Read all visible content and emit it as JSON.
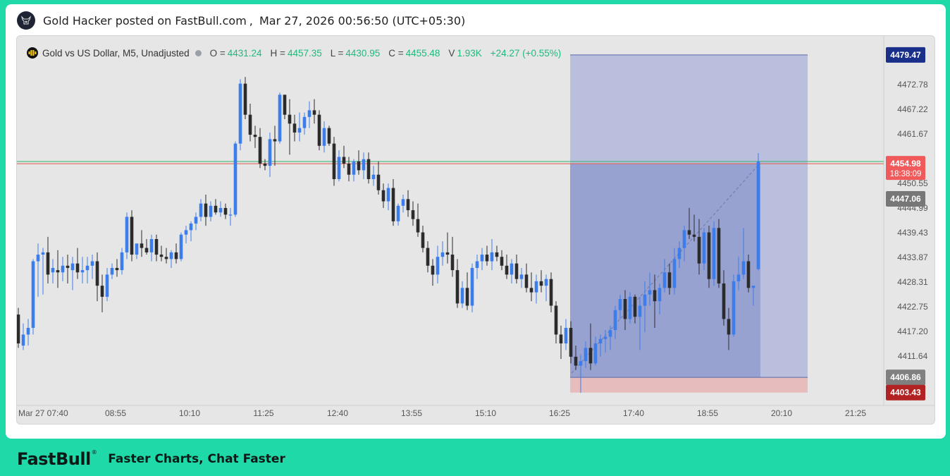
{
  "header": {
    "author": "Gold Hacker posted on FastBull.com",
    "separator": ",",
    "timestamp": "Mar 27, 2026 00:56:50 (UTC+05:30)",
    "avatar_icon": "bull-avatar-icon"
  },
  "legend": {
    "symbol": "Gold vs US Dollar, M5, Unadjusted",
    "symbol_icon": "gold-coin-icon",
    "o_label": "O =",
    "o_value": "4431.24",
    "h_label": "H =",
    "h_value": "4457.35",
    "l_label": "L =",
    "l_value": "4430.95",
    "c_label": "C =",
    "c_value": "4455.48",
    "v_label": "V",
    "v_value": "1.93K",
    "change": "+24.27 (+0.55%)"
  },
  "chart_data": {
    "type": "candlestick",
    "timeframe": "M5",
    "y_axis_ticks": [
      "4472.78",
      "4467.22",
      "4461.67",
      "4450.55",
      "4444.99",
      "4439.43",
      "4433.87",
      "4428.31",
      "4422.75",
      "4417.20",
      "4411.64"
    ],
    "y_tick_values": [
      4472.78,
      4467.22,
      4461.67,
      4450.55,
      4444.99,
      4439.43,
      4433.87,
      4428.31,
      4422.75,
      4417.2,
      4411.64
    ],
    "x_axis_ticks": [
      "Mar 27 07:40",
      "08:55",
      "10:10",
      "11:25",
      "12:40",
      "13:55",
      "15:10",
      "16:25",
      "17:40",
      "18:55",
      "20:10",
      "21:25"
    ],
    "price_labels": [
      {
        "value": "4479.47",
        "color": "#1a2f8a",
        "role": "target-price"
      },
      {
        "value": "4454.98",
        "color": "#f05a5a",
        "role": "last-price",
        "countdown": "18:38:09"
      },
      {
        "value": "4447.06",
        "color": "#777777",
        "role": "crosshair-price"
      },
      {
        "value": "4406.86",
        "color": "#808080",
        "role": "entry-price"
      },
      {
        "value": "4403.43",
        "color": "#b22222",
        "role": "stop-price"
      }
    ],
    "horizontal_lines": [
      {
        "value": 4455.48,
        "color": "#2ab36e"
      },
      {
        "value": 4454.98,
        "color": "#e05a4a"
      }
    ],
    "long_position": {
      "entry": 4406.86,
      "target": 4479.47,
      "stop": 4403.43
    },
    "bull_color": "#3b7dea",
    "bear_color": "#2b2b2b",
    "candles": [
      [
        4421.0,
        4422.5,
        4413.5,
        4414.5
      ],
      [
        4414.0,
        4419.0,
        4413.0,
        4416.5
      ],
      [
        4416.5,
        4420.0,
        4414.0,
        4418.0
      ],
      [
        4418.0,
        4433.5,
        4416.5,
        4433.0
      ],
      [
        4433.0,
        4437.0,
        4425.0,
        4434.5
      ],
      [
        4434.5,
        4436.0,
        4425.5,
        4435.0
      ],
      [
        4435.0,
        4438.5,
        4428.0,
        4430.0
      ],
      [
        4430.5,
        4433.5,
        4428.0,
        4431.5
      ],
      [
        4431.0,
        4435.5,
        4427.0,
        4430.5
      ],
      [
        4430.5,
        4434.0,
        4428.5,
        4432.0
      ],
      [
        4432.0,
        4434.5,
        4428.0,
        4431.5
      ],
      [
        4431.0,
        4434.0,
        4426.5,
        4432.5
      ],
      [
        4432.5,
        4436.0,
        4429.0,
        4430.5
      ],
      [
        4430.5,
        4434.0,
        4428.0,
        4431.0
      ],
      [
        4431.0,
        4434.0,
        4428.0,
        4432.0
      ],
      [
        4432.0,
        4434.5,
        4429.0,
        4433.0
      ],
      [
        4433.0,
        4435.0,
        4424.0,
        4427.5
      ],
      [
        4427.5,
        4430.0,
        4421.5,
        4425.0
      ],
      [
        4425.0,
        4431.5,
        4424.0,
        4430.0
      ],
      [
        4430.0,
        4432.5,
        4429.0,
        4431.5
      ],
      [
        4431.5,
        4433.5,
        4429.5,
        4431.0
      ],
      [
        4431.0,
        4436.0,
        4430.0,
        4435.0
      ],
      [
        4435.0,
        4444.0,
        4433.5,
        4443.0
      ],
      [
        4443.0,
        4444.5,
        4433.0,
        4434.5
      ],
      [
        4434.5,
        4437.0,
        4433.5,
        4437.0
      ],
      [
        4437.0,
        4440.0,
        4434.0,
        4436.0
      ],
      [
        4436.0,
        4438.0,
        4434.5,
        4435.0
      ],
      [
        4435.0,
        4439.0,
        4433.0,
        4438.0
      ],
      [
        4438.0,
        4439.0,
        4433.0,
        4434.5
      ],
      [
        4434.5,
        4436.5,
        4433.0,
        4434.0
      ],
      [
        4434.0,
        4436.0,
        4432.5,
        4433.5
      ],
      [
        4433.5,
        4435.5,
        4431.5,
        4435.0
      ],
      [
        4435.0,
        4437.0,
        4432.5,
        4433.5
      ],
      [
        4433.5,
        4439.5,
        4433.0,
        4439.0
      ],
      [
        4439.0,
        4441.0,
        4437.0,
        4440.0
      ],
      [
        4440.0,
        4442.0,
        4437.5,
        4441.5
      ],
      [
        4441.5,
        4444.0,
        4440.0,
        4443.0
      ],
      [
        4443.0,
        4447.0,
        4442.0,
        4446.0
      ],
      [
        4446.0,
        4448.0,
        4441.0,
        4443.0
      ],
      [
        4443.0,
        4446.5,
        4442.0,
        4445.5
      ],
      [
        4445.5,
        4447.0,
        4443.5,
        4444.0
      ],
      [
        4444.0,
        4446.5,
        4443.0,
        4445.0
      ],
      [
        4445.0,
        4446.0,
        4442.5,
        4443.5
      ],
      [
        4443.5,
        4445.0,
        4441.0,
        4443.5
      ],
      [
        4443.5,
        4460.0,
        4443.0,
        4459.5
      ],
      [
        4459.5,
        4474.0,
        4458.0,
        4473.0
      ],
      [
        4473.0,
        4474.5,
        4465.0,
        4466.0
      ],
      [
        4466.0,
        4468.5,
        4460.0,
        4461.5
      ],
      [
        4461.5,
        4463.5,
        4458.5,
        4461.0
      ],
      [
        4461.0,
        4463.0,
        4454.0,
        4455.0
      ],
      [
        4455.0,
        4456.0,
        4453.5,
        4454.5
      ],
      [
        4454.5,
        4462.0,
        4452.0,
        4460.5
      ],
      [
        4460.5,
        4463.5,
        4454.5,
        4460.0
      ],
      [
        4460.0,
        4471.0,
        4459.5,
        4470.5
      ],
      [
        4470.5,
        4470.5,
        4465.0,
        4466.0
      ],
      [
        4466.0,
        4469.5,
        4457.0,
        4464.0
      ],
      [
        4464.0,
        4466.0,
        4460.0,
        4462.0
      ],
      [
        4462.0,
        4466.5,
        4460.0,
        4463.0
      ],
      [
        4463.0,
        4466.5,
        4461.5,
        4465.5
      ],
      [
        4465.5,
        4469.0,
        4463.0,
        4467.0
      ],
      [
        4467.0,
        4469.5,
        4464.0,
        4466.0
      ],
      [
        4466.0,
        4467.0,
        4458.0,
        4459.0
      ],
      [
        4459.0,
        4464.5,
        4457.5,
        4463.0
      ],
      [
        4463.0,
        4463.5,
        4459.0,
        4459.5
      ],
      [
        4459.5,
        4461.0,
        4450.0,
        4451.5
      ],
      [
        4451.5,
        4458.0,
        4451.0,
        4456.5
      ],
      [
        4456.5,
        4459.0,
        4454.0,
        4455.0
      ],
      [
        4455.0,
        4456.5,
        4451.0,
        4452.5
      ],
      [
        4452.5,
        4456.0,
        4451.0,
        4455.5
      ],
      [
        4455.5,
        4458.0,
        4452.5,
        4453.5
      ],
      [
        4453.5,
        4457.5,
        4451.5,
        4456.0
      ],
      [
        4456.0,
        4457.5,
        4450.5,
        4451.5
      ],
      [
        4451.5,
        4454.5,
        4450.0,
        4452.5
      ],
      [
        4452.5,
        4455.5,
        4448.0,
        4449.0
      ],
      [
        4449.0,
        4450.5,
        4445.0,
        4446.5
      ],
      [
        4446.5,
        4450.5,
        4444.5,
        4449.5
      ],
      [
        4449.5,
        4451.5,
        4441.0,
        4442.0
      ],
      [
        4442.0,
        4446.0,
        4441.0,
        4445.5
      ],
      [
        4445.5,
        4448.0,
        4444.0,
        4447.0
      ],
      [
        4447.0,
        4449.0,
        4443.0,
        4444.5
      ],
      [
        4444.5,
        4446.5,
        4441.0,
        4442.5
      ],
      [
        4442.5,
        4446.0,
        4438.5,
        4439.5
      ],
      [
        4439.5,
        4441.0,
        4435.0,
        4436.0
      ],
      [
        4436.0,
        4437.5,
        4430.5,
        4432.0
      ],
      [
        4432.0,
        4433.5,
        4427.5,
        4430.0
      ],
      [
        4430.0,
        4436.5,
        4428.0,
        4434.0
      ],
      [
        4434.0,
        4437.5,
        4432.0,
        4435.0
      ],
      [
        4435.0,
        4439.5,
        4432.5,
        4434.5
      ],
      [
        4434.5,
        4438.5,
        4429.5,
        4431.0
      ],
      [
        4431.0,
        4433.5,
        4422.5,
        4423.5
      ],
      [
        4423.5,
        4428.5,
        4422.5,
        4427.0
      ],
      [
        4427.0,
        4430.5,
        4422.0,
        4423.0
      ],
      [
        4423.0,
        4432.5,
        4421.5,
        4431.5
      ],
      [
        4431.5,
        4434.5,
        4429.0,
        4433.0
      ],
      [
        4433.0,
        4436.0,
        4431.0,
        4434.5
      ],
      [
        4434.5,
        4436.5,
        4432.0,
        4433.0
      ],
      [
        4433.0,
        4438.0,
        4431.0,
        4435.0
      ],
      [
        4435.0,
        4436.5,
        4433.0,
        4434.0
      ],
      [
        4434.0,
        4435.5,
        4431.0,
        4432.0
      ],
      [
        4432.0,
        4434.5,
        4429.0,
        4430.0
      ],
      [
        4430.0,
        4433.5,
        4428.0,
        4432.5
      ],
      [
        4432.5,
        4434.5,
        4428.0,
        4429.0
      ],
      [
        4429.0,
        4431.5,
        4427.0,
        4430.0
      ],
      [
        4430.0,
        4432.5,
        4426.0,
        4427.0
      ],
      [
        4427.0,
        4430.5,
        4424.0,
        4426.0
      ],
      [
        4426.0,
        4430.0,
        4423.5,
        4428.5
      ],
      [
        4428.5,
        4431.0,
        4426.0,
        4427.5
      ],
      [
        4427.5,
        4430.0,
        4424.0,
        4429.0
      ],
      [
        4429.0,
        4430.5,
        4421.5,
        4423.0
      ],
      [
        4423.0,
        4424.0,
        4414.5,
        4416.5
      ],
      [
        4416.5,
        4418.5,
        4411.0,
        4414.5
      ],
      [
        4414.5,
        4420.0,
        4413.0,
        4418.0
      ],
      [
        4418.0,
        4419.5,
        4410.0,
        4411.5
      ],
      [
        4411.5,
        4414.0,
        4408.5,
        4409.5
      ],
      [
        4409.5,
        4412.0,
        4403.4,
        4410.5
      ],
      [
        4410.5,
        4415.0,
        4409.0,
        4413.5
      ],
      [
        4413.5,
        4419.0,
        4408.5,
        4410.0
      ],
      [
        4410.0,
        4416.0,
        4409.5,
        4414.5
      ],
      [
        4414.5,
        4416.5,
        4411.5,
        4415.5
      ],
      [
        4415.5,
        4417.5,
        4412.5,
        4416.0
      ],
      [
        4416.0,
        4418.5,
        4413.0,
        4417.5
      ],
      [
        4417.5,
        4423.0,
        4415.5,
        4422.0
      ],
      [
        4422.0,
        4425.5,
        4420.0,
        4424.5
      ],
      [
        4424.5,
        4426.5,
        4417.5,
        4420.0
      ],
      [
        4420.0,
        4426.0,
        4419.0,
        4425.0
      ],
      [
        4425.0,
        4425.5,
        4419.0,
        4420.5
      ],
      [
        4420.5,
        4425.0,
        4413.0,
        4423.0
      ],
      [
        4423.0,
        4428.5,
        4417.0,
        4425.5
      ],
      [
        4425.5,
        4430.5,
        4423.0,
        4426.5
      ],
      [
        4426.5,
        4430.0,
        4418.0,
        4424.0
      ],
      [
        4424.0,
        4428.0,
        4421.0,
        4427.0
      ],
      [
        4427.0,
        4433.5,
        4426.0,
        4430.5
      ],
      [
        4430.5,
        4432.5,
        4425.5,
        4427.0
      ],
      [
        4427.0,
        4436.0,
        4425.5,
        4433.5
      ],
      [
        4433.5,
        4437.5,
        4431.5,
        4436.0
      ],
      [
        4436.0,
        4441.0,
        4433.0,
        4440.0
      ],
      [
        4440.0,
        4445.0,
        4438.0,
        4439.0
      ],
      [
        4439.0,
        4443.5,
        4437.5,
        4438.5
      ],
      [
        4438.5,
        4442.5,
        4430.0,
        4432.5
      ],
      [
        4432.5,
        4440.5,
        4431.0,
        4439.5
      ],
      [
        4439.5,
        4441.0,
        4427.0,
        4429.0
      ],
      [
        4429.0,
        4442.0,
        4427.5,
        4440.5
      ],
      [
        4440.5,
        4442.5,
        4427.0,
        4428.0
      ],
      [
        4428.0,
        4431.0,
        4418.5,
        4420.0
      ],
      [
        4420.0,
        4422.5,
        4413.0,
        4416.5
      ],
      [
        4416.5,
        4430.0,
        4416.0,
        4428.5
      ],
      [
        4428.5,
        4434.0,
        4426.5,
        4430.0
      ],
      [
        4430.0,
        4440.5,
        4429.0,
        4433.0
      ],
      [
        4433.0,
        4434.5,
        4426.0,
        4427.0
      ],
      [
        4427.0,
        4427.5,
        4423.0,
        4427.5
      ],
      [
        4431.24,
        4457.35,
        4430.95,
        4455.48
      ]
    ]
  }
}
